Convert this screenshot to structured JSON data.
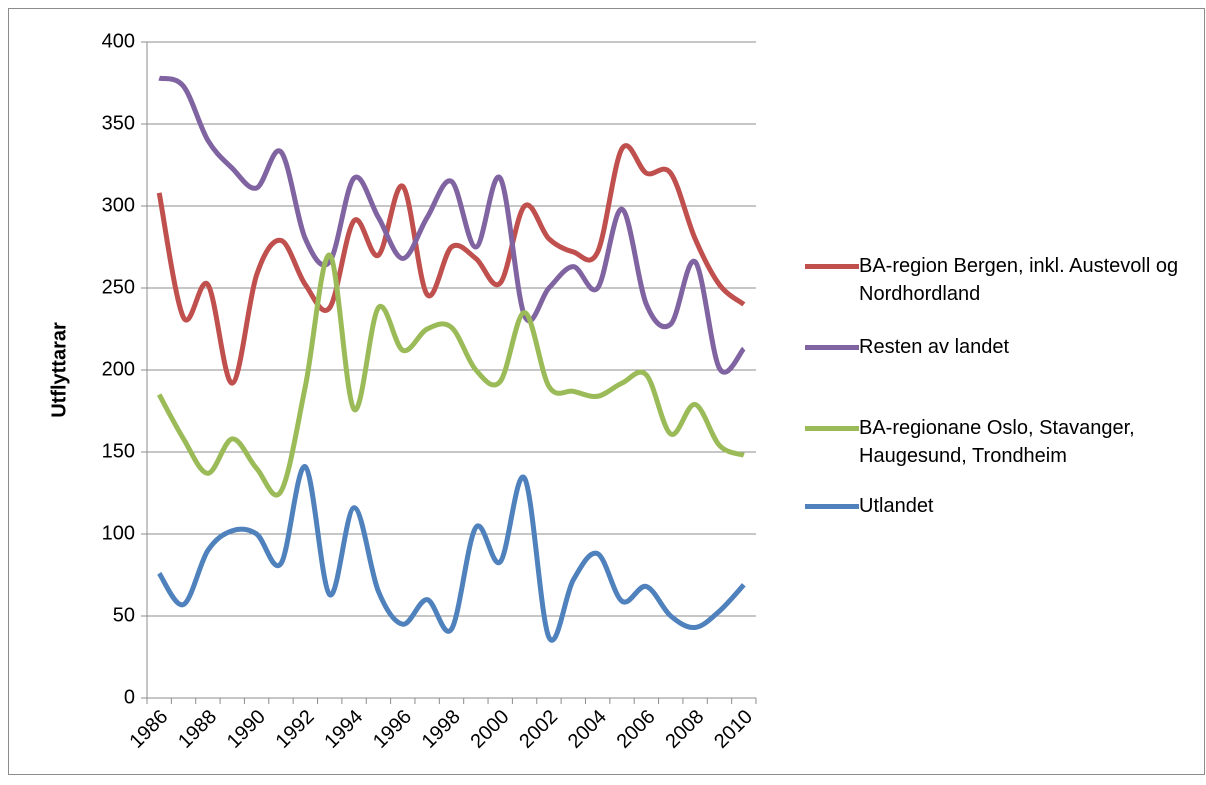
{
  "chart_data": {
    "type": "line",
    "y_label": "Utflyttarar",
    "categories": [
      "1986",
      null,
      "1988",
      null,
      "1990",
      null,
      "1992",
      null,
      "1994",
      null,
      "1996",
      null,
      "1998",
      null,
      "2000",
      null,
      "2002",
      null,
      "2004",
      null,
      "2006",
      null,
      "2008",
      null,
      "2010"
    ],
    "series": [
      {
        "name": "BA-region Bergen, inkl. Austevoll og Nordhordland",
        "color": "#c0504d",
        "values": [
          308,
          232,
          252,
          192,
          258,
          279,
          252,
          238,
          291,
          270,
          312,
          246,
          275,
          268,
          253,
          300,
          280,
          272,
          272,
          335,
          320,
          320,
          280,
          252,
          240
        ]
      },
      {
        "name": "Resten av landet",
        "color": "#8064a2",
        "values": [
          378,
          373,
          340,
          323,
          311,
          333,
          280,
          266,
          317,
          293,
          268,
          293,
          315,
          275,
          317,
          233,
          250,
          263,
          250,
          298,
          240,
          228,
          266,
          201,
          213
        ]
      },
      {
        "name": "BA-regionane Oslo, Stavanger, Haugesund, Trondheim",
        "color": "#9bbb59",
        "values": [
          185,
          158,
          137,
          158,
          140,
          126,
          190,
          270,
          176,
          238,
          212,
          225,
          226,
          200,
          193,
          235,
          190,
          187,
          184,
          192,
          197,
          161,
          179,
          154,
          148
        ]
      },
      {
        "name": "Utlandet",
        "color": "#4f81bd",
        "values": [
          76,
          57,
          90,
          102,
          100,
          82,
          141,
          63,
          116,
          65,
          45,
          60,
          42,
          104,
          83,
          134,
          37,
          72,
          88,
          59,
          68,
          50,
          43,
          53,
          69
        ]
      }
    ],
    "ylim": [
      0,
      400
    ],
    "yticks": [
      0,
      50,
      100,
      150,
      200,
      250,
      300,
      350,
      400
    ],
    "grid": true,
    "legend": "right",
    "smooth": true
  }
}
